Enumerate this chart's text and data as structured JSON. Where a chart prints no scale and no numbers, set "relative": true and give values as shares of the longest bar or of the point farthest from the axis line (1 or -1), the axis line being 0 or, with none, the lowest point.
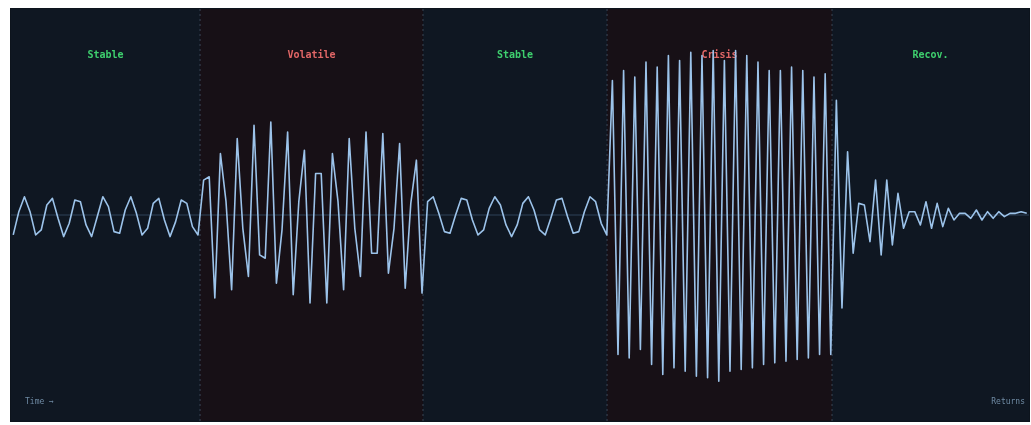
{
  "chart_data": {
    "type": "line",
    "relative": true,
    "tick_labels": false,
    "categories": [
      null,
      null,
      null,
      null,
      null,
      null,
      null,
      null,
      null,
      null,
      null,
      null,
      null,
      null,
      null,
      null,
      null,
      null,
      null,
      null,
      null,
      null,
      null,
      null,
      null,
      null,
      null,
      null,
      null,
      null,
      null,
      null,
      null,
      null,
      null,
      null,
      null,
      null,
      null,
      null,
      null,
      null,
      null,
      null,
      null,
      null,
      null,
      null,
      null,
      null,
      null,
      null,
      null,
      null,
      null,
      null,
      null,
      null,
      null,
      null,
      null,
      null,
      null,
      null,
      null,
      null,
      null,
      null,
      null,
      null,
      null,
      null,
      null,
      null,
      null,
      null,
      null,
      null,
      null,
      null,
      null,
      null,
      null,
      null,
      null,
      null,
      null,
      null,
      null,
      null,
      null,
      null,
      null,
      null,
      null,
      null,
      null,
      null,
      null,
      null,
      null,
      null,
      null,
      null,
      null,
      null,
      null,
      null,
      null,
      null,
      null,
      null,
      null,
      null,
      null,
      null,
      null,
      null,
      null,
      null,
      null,
      null,
      null,
      null,
      null,
      null,
      null,
      null,
      null,
      null,
      null,
      null,
      null,
      null,
      null,
      null,
      null,
      null,
      null,
      null,
      null,
      null,
      null,
      null,
      null,
      null,
      null,
      null,
      null,
      null,
      null,
      null,
      null,
      null,
      null,
      null,
      null,
      null,
      null,
      null,
      null,
      null,
      null,
      null,
      null,
      null,
      null,
      null,
      null,
      null,
      null,
      null,
      null,
      null,
      null,
      null,
      null,
      null,
      null,
      null,
      null,
      null
    ],
    "series": [
      {
        "color": "#9cc3ea",
        "values": [
          -0.12,
          0.02,
          0.11,
          0.02,
          -0.12,
          -0.09,
          0.06,
          0.1,
          -0.02,
          -0.13,
          -0.05,
          0.09,
          0.08,
          -0.06,
          -0.13,
          -0.01,
          0.11,
          0.05,
          -0.1,
          -0.11,
          0.03,
          0.11,
          0.01,
          -0.12,
          -0.08,
          0.07,
          0.1,
          -0.03,
          -0.13,
          -0.04,
          0.09,
          0.07,
          -0.07,
          -0.12,
          0.21,
          0.23,
          -0.5,
          0.37,
          0.08,
          -0.45,
          0.46,
          -0.08,
          -0.37,
          0.54,
          -0.24,
          -0.26,
          0.56,
          -0.41,
          -0.09,
          0.5,
          -0.48,
          0.08,
          0.39,
          -0.53,
          0.25,
          0.25,
          -0.53,
          0.37,
          0.08,
          -0.45,
          0.46,
          -0.08,
          -0.37,
          0.5,
          -0.23,
          -0.23,
          0.49,
          -0.35,
          -0.08,
          0.43,
          -0.44,
          0.07,
          0.33,
          -0.47,
          0.08,
          0.11,
          0.01,
          -0.1,
          -0.11,
          0.0,
          0.1,
          0.09,
          -0.03,
          -0.12,
          -0.09,
          0.04,
          0.11,
          0.06,
          -0.06,
          -0.13,
          -0.06,
          0.07,
          0.11,
          0.03,
          -0.09,
          -0.12,
          -0.02,
          0.09,
          0.1,
          -0.01,
          -0.11,
          -0.1,
          0.02,
          0.11,
          0.08,
          -0.05,
          -0.12,
          0.81,
          -0.84,
          0.87,
          -0.86,
          0.83,
          -0.81,
          0.92,
          -0.9,
          0.89,
          -0.96,
          0.96,
          -0.92,
          0.93,
          -0.94,
          0.98,
          -0.97,
          0.96,
          -0.98,
          0.99,
          -1,
          0.93,
          -0.94,
          0.99,
          -0.93,
          0.96,
          -0.92,
          0.92,
          -0.9,
          0.87,
          -0.89,
          0.87,
          -0.88,
          0.89,
          -0.87,
          0.87,
          -0.86,
          0.83,
          -0.84,
          0.85,
          -0.84,
          0.69,
          -0.56,
          0.38,
          -0.23,
          0.07,
          0.06,
          -0.16,
          0.21,
          -0.24,
          0.21,
          -0.18,
          0.13,
          -0.08,
          0.02,
          0.02,
          -0.06,
          0.08,
          -0.08,
          0.07,
          -0.07,
          0.04,
          -0.03,
          0.01,
          0.01,
          -0.02,
          0.03,
          -0.03,
          0.02,
          -0.02,
          0.02,
          -0.01,
          0.01,
          0.01,
          0.02,
          0.01
        ]
      }
    ],
    "annotations": [
      "Stable",
      "Volatile",
      "Stable",
      "Crisis",
      "Recov.",
      "Time →",
      "Returns"
    ]
  }
}
